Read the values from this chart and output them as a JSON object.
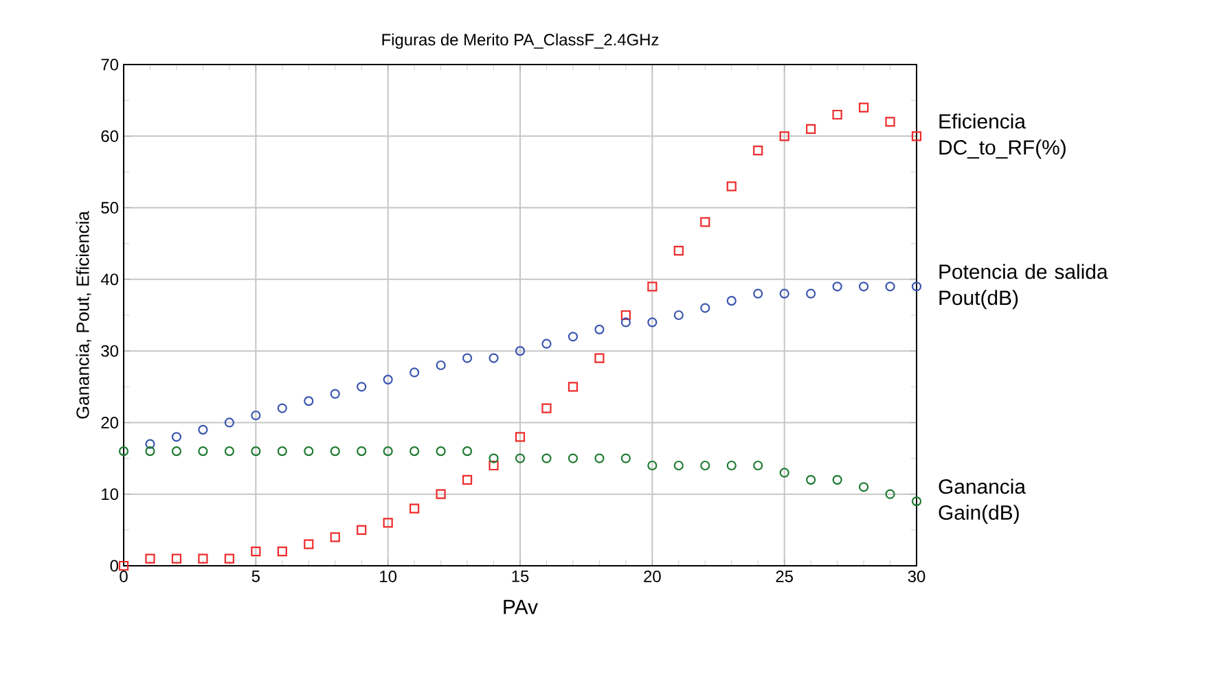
{
  "chart_data": {
    "type": "scatter",
    "title": "Figuras de Merito PA_ClassF_2.4GHz",
    "xlabel": "PAv",
    "ylabel": "Ganancia, Pout, Eficiencia",
    "x": [
      0,
      1,
      2,
      3,
      4,
      5,
      6,
      7,
      8,
      9,
      10,
      11,
      12,
      13,
      14,
      15,
      16,
      17,
      18,
      19,
      20,
      21,
      22,
      23,
      24,
      25,
      26,
      27,
      28,
      29,
      30
    ],
    "series": [
      {
        "name": "Eficiencia DC_to_RF(%)",
        "color": "#ee2a2a",
        "marker": "square",
        "values": [
          0,
          1,
          1,
          1,
          1,
          2,
          2,
          3,
          4,
          5,
          6,
          8,
          10,
          12,
          14,
          18,
          22,
          25,
          29,
          35,
          39,
          44,
          48,
          53,
          58,
          60,
          61,
          63,
          64,
          62,
          60
        ]
      },
      {
        "name": "Potencia de salida Pout(dB)",
        "color": "#3a55b0",
        "marker": "circle",
        "values": [
          null,
          17,
          18,
          19,
          20,
          21,
          22,
          23,
          24,
          25,
          26,
          27,
          28,
          29,
          29,
          30,
          31,
          32,
          33,
          34,
          34,
          35,
          36,
          37,
          38,
          38,
          38,
          39,
          39,
          39,
          39
        ]
      },
      {
        "name": "Ganancia Gain(dB)",
        "color": "#1e7a30",
        "marker": "circle",
        "values": [
          16,
          16,
          16,
          16,
          16,
          16,
          16,
          16,
          16,
          16,
          16,
          16,
          16,
          16,
          15,
          15,
          15,
          15,
          15,
          15,
          14,
          14,
          14,
          14,
          14,
          13,
          12,
          12,
          11,
          10,
          9
        ]
      }
    ],
    "xlim": [
      0,
      30
    ],
    "ylim": [
      0,
      70
    ],
    "xticks": [
      0,
      5,
      10,
      15,
      20,
      25,
      30
    ],
    "yticks": [
      0,
      10,
      20,
      30,
      40,
      50,
      60,
      70
    ],
    "grid": true
  }
}
